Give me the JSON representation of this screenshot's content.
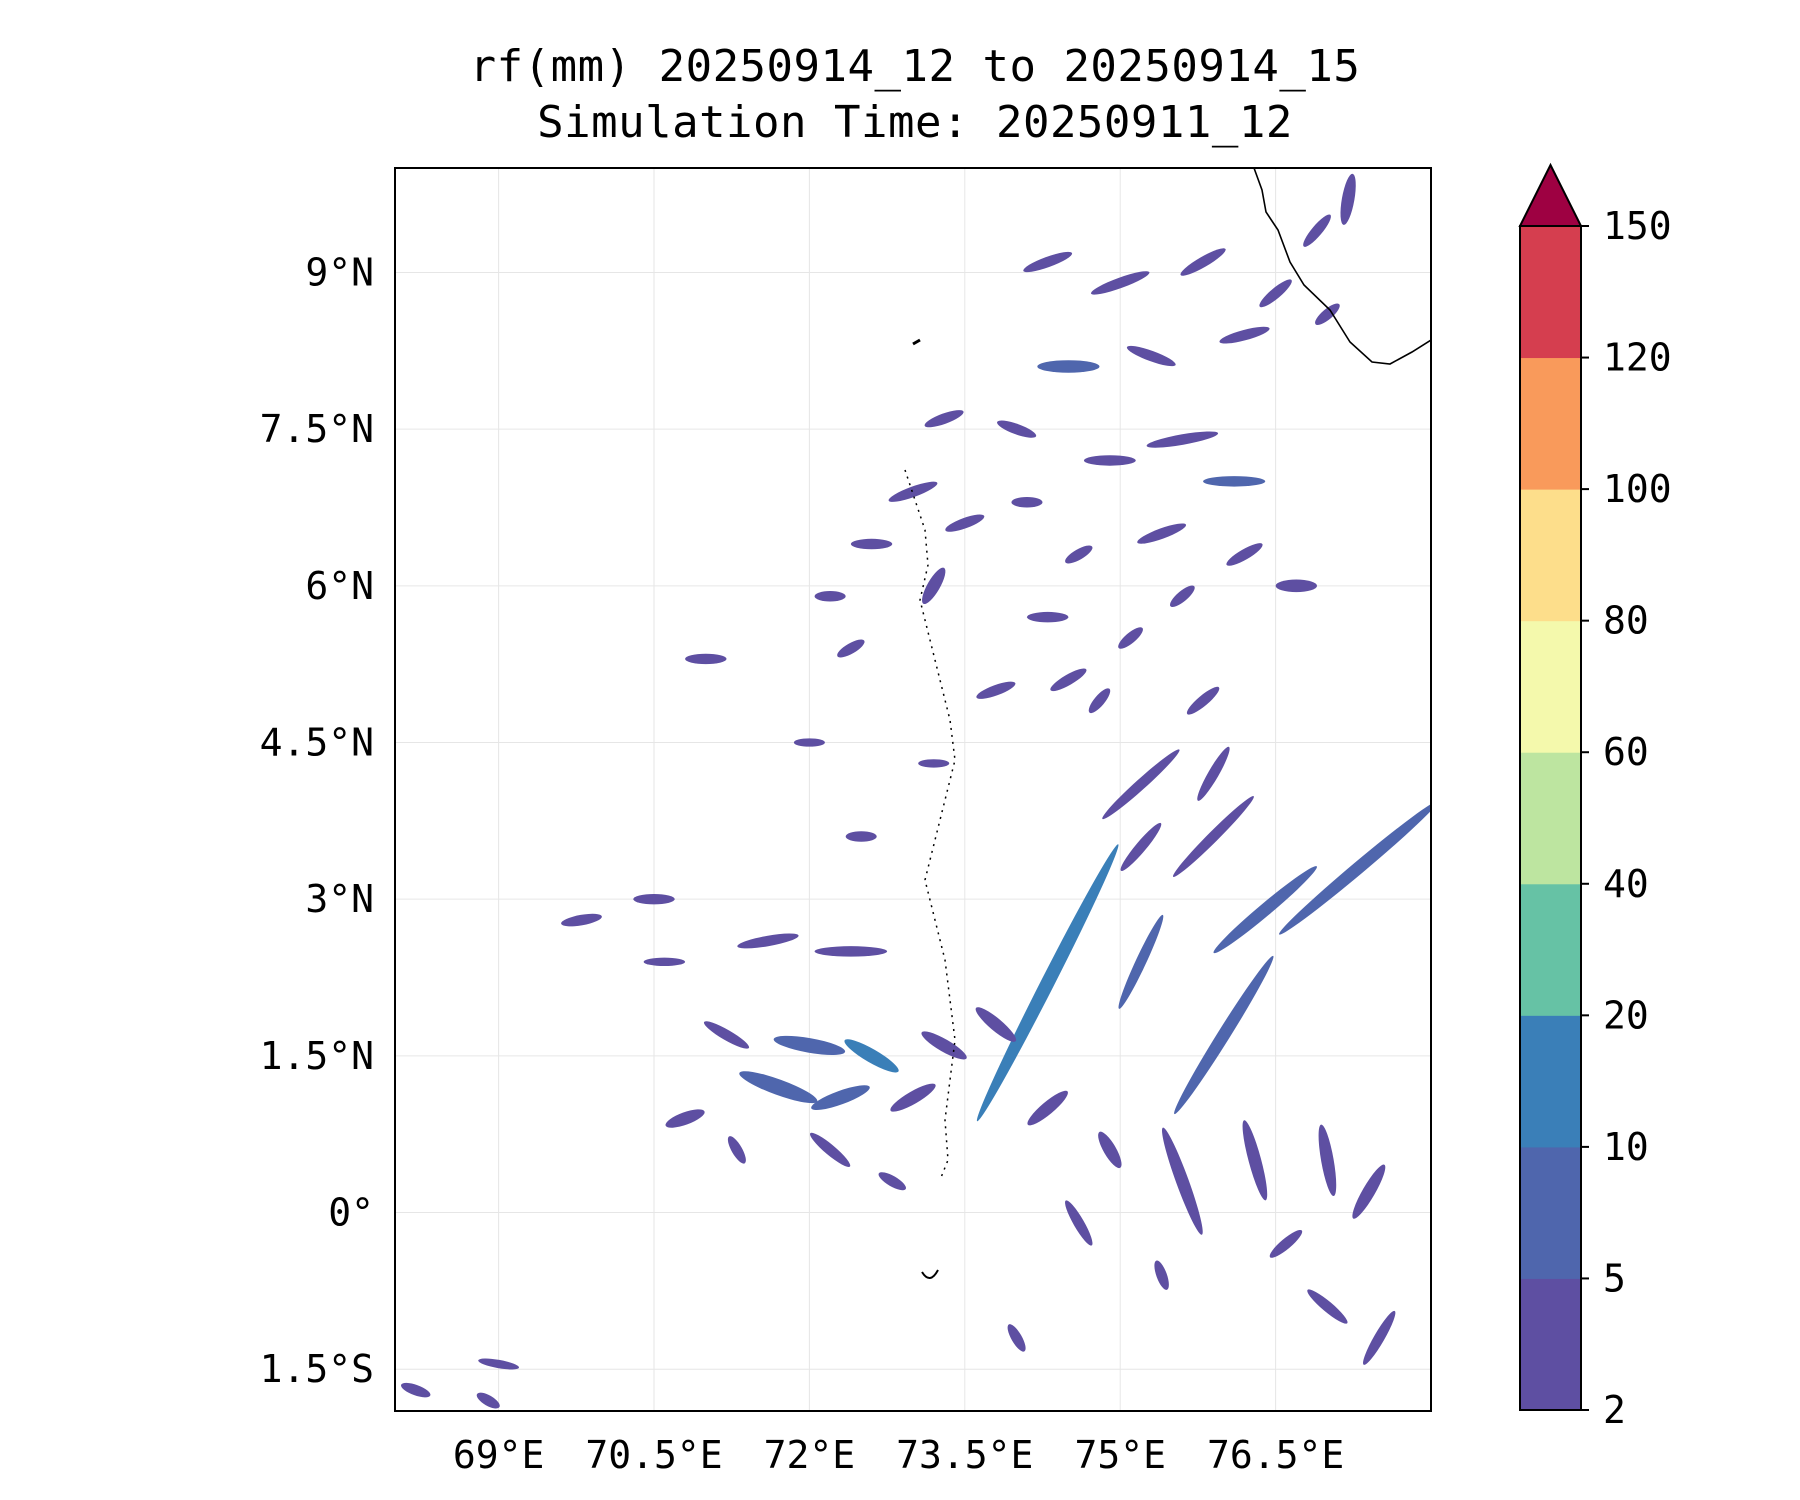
{
  "figure": {
    "title_line1": "rf(mm) 20250914_12 to 20250914_15",
    "title_line2": "Simulation Time: 20250911_12"
  },
  "map": {
    "lon_range": [
      68,
      78
    ],
    "lat_range": [
      -1.9,
      10
    ],
    "gridlines": true,
    "x_ticks": [
      {
        "value": 69,
        "label": "69°E"
      },
      {
        "value": 70.5,
        "label": "70.5°E"
      },
      {
        "value": 72,
        "label": "72°E"
      },
      {
        "value": 73.5,
        "label": "73.5°E"
      },
      {
        "value": 75,
        "label": "75°E"
      },
      {
        "value": 76.5,
        "label": "76.5°E"
      }
    ],
    "y_ticks": [
      {
        "value": 9,
        "label": "9°N"
      },
      {
        "value": 7.5,
        "label": "7.5°N"
      },
      {
        "value": 6,
        "label": "6°N"
      },
      {
        "value": 4.5,
        "label": "4.5°N"
      },
      {
        "value": 3,
        "label": "3°N"
      },
      {
        "value": 1.5,
        "label": "1.5°N"
      },
      {
        "value": 0,
        "label": "0°"
      },
      {
        "value": -1.5,
        "label": "1.5°S"
      }
    ]
  },
  "colorbar": {
    "levels": [
      2,
      5,
      10,
      20,
      40,
      60,
      80,
      100,
      120,
      150
    ],
    "labels": [
      "2",
      "5",
      "10",
      "20",
      "40",
      "60",
      "80",
      "100",
      "120",
      "150"
    ],
    "colors": [
      "#5e4fa2",
      "#4f66ad",
      "#3a7fb8",
      "#66c2a5",
      "#bde5a0",
      "#f4f9ac",
      "#fdde8b",
      "#f99a5b",
      "#d53e4f"
    ],
    "extend_color": "#9e0142",
    "extend": "max"
  },
  "rain_cells": [
    {
      "lon": 76.1,
      "lat": 7.0,
      "len": 0.6,
      "wid": 0.1,
      "ang": 0,
      "level": 1
    },
    {
      "lon": 75.6,
      "lat": 7.4,
      "len": 0.7,
      "wid": 0.1,
      "ang": -10,
      "level": 0
    },
    {
      "lon": 74.9,
      "lat": 7.2,
      "len": 0.5,
      "wid": 0.1,
      "ang": 0,
      "level": 0
    },
    {
      "lon": 74.0,
      "lat": 7.5,
      "len": 0.4,
      "wid": 0.1,
      "ang": 20,
      "level": 0
    },
    {
      "lon": 74.5,
      "lat": 8.1,
      "len": 0.6,
      "wid": 0.12,
      "ang": 0,
      "level": 1
    },
    {
      "lon": 75.3,
      "lat": 8.2,
      "len": 0.5,
      "wid": 0.1,
      "ang": 20,
      "level": 0
    },
    {
      "lon": 76.2,
      "lat": 8.4,
      "len": 0.5,
      "wid": 0.1,
      "ang": -15,
      "level": 0
    },
    {
      "lon": 75.0,
      "lat": 8.9,
      "len": 0.6,
      "wid": 0.1,
      "ang": -20,
      "level": 0
    },
    {
      "lon": 75.8,
      "lat": 9.1,
      "len": 0.5,
      "wid": 0.1,
      "ang": -30,
      "level": 0
    },
    {
      "lon": 74.3,
      "lat": 9.1,
      "len": 0.5,
      "wid": 0.1,
      "ang": -20,
      "level": 0
    },
    {
      "lon": 76.9,
      "lat": 9.4,
      "len": 0.4,
      "wid": 0.1,
      "ang": -50,
      "level": 0
    },
    {
      "lon": 76.5,
      "lat": 8.8,
      "len": 0.4,
      "wid": 0.1,
      "ang": -40,
      "level": 0
    },
    {
      "lon": 77.0,
      "lat": 8.6,
      "len": 0.3,
      "wid": 0.1,
      "ang": -40,
      "level": 0
    },
    {
      "lon": 77.2,
      "lat": 9.7,
      "len": 0.5,
      "wid": 0.12,
      "ang": -80,
      "level": 0
    },
    {
      "lon": 73.3,
      "lat": 7.6,
      "len": 0.4,
      "wid": 0.1,
      "ang": -20,
      "level": 0
    },
    {
      "lon": 73.0,
      "lat": 6.9,
      "len": 0.5,
      "wid": 0.1,
      "ang": -20,
      "level": 0
    },
    {
      "lon": 72.6,
      "lat": 6.4,
      "len": 0.4,
      "wid": 0.1,
      "ang": 0,
      "level": 0
    },
    {
      "lon": 73.2,
      "lat": 6.0,
      "len": 0.4,
      "wid": 0.12,
      "ang": -60,
      "level": 0
    },
    {
      "lon": 73.5,
      "lat": 6.6,
      "len": 0.4,
      "wid": 0.1,
      "ang": -20,
      "level": 0
    },
    {
      "lon": 74.1,
      "lat": 6.8,
      "len": 0.3,
      "wid": 0.1,
      "ang": 0,
      "level": 0
    },
    {
      "lon": 74.6,
      "lat": 6.3,
      "len": 0.3,
      "wid": 0.1,
      "ang": -30,
      "level": 0
    },
    {
      "lon": 75.4,
      "lat": 6.5,
      "len": 0.5,
      "wid": 0.1,
      "ang": -20,
      "level": 0
    },
    {
      "lon": 76.2,
      "lat": 6.3,
      "len": 0.4,
      "wid": 0.1,
      "ang": -30,
      "level": 0
    },
    {
      "lon": 76.7,
      "lat": 6.0,
      "len": 0.4,
      "wid": 0.12,
      "ang": 0,
      "level": 0
    },
    {
      "lon": 75.6,
      "lat": 5.9,
      "len": 0.3,
      "wid": 0.1,
      "ang": -40,
      "level": 0
    },
    {
      "lon": 74.3,
      "lat": 5.7,
      "len": 0.4,
      "wid": 0.1,
      "ang": 0,
      "level": 0
    },
    {
      "lon": 75.1,
      "lat": 5.5,
      "len": 0.3,
      "wid": 0.1,
      "ang": -40,
      "level": 0
    },
    {
      "lon": 72.2,
      "lat": 5.9,
      "len": 0.3,
      "wid": 0.1,
      "ang": 0,
      "level": 0
    },
    {
      "lon": 71.0,
      "lat": 5.3,
      "len": 0.4,
      "wid": 0.1,
      "ang": 0,
      "level": 0
    },
    {
      "lon": 72.4,
      "lat": 5.4,
      "len": 0.3,
      "wid": 0.1,
      "ang": -30,
      "level": 0
    },
    {
      "lon": 73.8,
      "lat": 5.0,
      "len": 0.4,
      "wid": 0.1,
      "ang": -20,
      "level": 0
    },
    {
      "lon": 74.5,
      "lat": 5.1,
      "len": 0.4,
      "wid": 0.1,
      "ang": -30,
      "level": 0
    },
    {
      "lon": 75.8,
      "lat": 4.9,
      "len": 0.4,
      "wid": 0.1,
      "ang": -40,
      "level": 0
    },
    {
      "lon": 74.8,
      "lat": 4.9,
      "len": 0.3,
      "wid": 0.1,
      "ang": -50,
      "level": 0
    },
    {
      "lon": 72.0,
      "lat": 4.5,
      "len": 0.3,
      "wid": 0.08,
      "ang": 0,
      "level": 0
    },
    {
      "lon": 73.2,
      "lat": 4.3,
      "len": 0.3,
      "wid": 0.08,
      "ang": 0,
      "level": 0
    },
    {
      "lon": 75.2,
      "lat": 4.1,
      "len": 1.0,
      "wid": 0.1,
      "ang": -42,
      "level": 0
    },
    {
      "lon": 75.9,
      "lat": 3.6,
      "len": 1.1,
      "wid": 0.1,
      "ang": -45,
      "level": 0
    },
    {
      "lon": 75.2,
      "lat": 3.5,
      "len": 0.6,
      "wid": 0.1,
      "ang": -50,
      "level": 0
    },
    {
      "lon": 75.9,
      "lat": 4.2,
      "len": 0.6,
      "wid": 0.1,
      "ang": -60,
      "level": 0
    },
    {
      "lon": 76.4,
      "lat": 2.9,
      "len": 1.3,
      "wid": 0.12,
      "ang": -40,
      "level": 1
    },
    {
      "lon": 77.3,
      "lat": 3.3,
      "len": 2.0,
      "wid": 0.12,
      "ang": -40,
      "level": 1
    },
    {
      "lon": 74.3,
      "lat": 2.2,
      "len": 3.0,
      "wid": 0.13,
      "ang": -63,
      "level": 2
    },
    {
      "lon": 76.0,
      "lat": 1.7,
      "len": 1.8,
      "wid": 0.12,
      "ang": -58,
      "level": 1
    },
    {
      "lon": 75.2,
      "lat": 2.4,
      "len": 1.0,
      "wid": 0.1,
      "ang": -65,
      "level": 1
    },
    {
      "lon": 72.5,
      "lat": 3.6,
      "len": 0.3,
      "wid": 0.1,
      "ang": 0,
      "level": 0
    },
    {
      "lon": 70.5,
      "lat": 3.0,
      "len": 0.4,
      "wid": 0.1,
      "ang": 0,
      "level": 0
    },
    {
      "lon": 69.8,
      "lat": 2.8,
      "len": 0.4,
      "wid": 0.1,
      "ang": -10,
      "level": 0
    },
    {
      "lon": 71.6,
      "lat": 2.6,
      "len": 0.6,
      "wid": 0.1,
      "ang": -10,
      "level": 0
    },
    {
      "lon": 72.4,
      "lat": 2.5,
      "len": 0.7,
      "wid": 0.1,
      "ang": 0,
      "level": 0
    },
    {
      "lon": 70.6,
      "lat": 2.4,
      "len": 0.4,
      "wid": 0.08,
      "ang": 0,
      "level": 0
    },
    {
      "lon": 71.2,
      "lat": 1.7,
      "len": 0.5,
      "wid": 0.1,
      "ang": 30,
      "level": 0
    },
    {
      "lon": 72.0,
      "lat": 1.6,
      "len": 0.7,
      "wid": 0.14,
      "ang": 10,
      "level": 1
    },
    {
      "lon": 72.6,
      "lat": 1.5,
      "len": 0.6,
      "wid": 0.13,
      "ang": 30,
      "level": 2
    },
    {
      "lon": 71.7,
      "lat": 1.2,
      "len": 0.8,
      "wid": 0.15,
      "ang": 20,
      "level": 1
    },
    {
      "lon": 72.3,
      "lat": 1.1,
      "len": 0.6,
      "wid": 0.13,
      "ang": -20,
      "level": 1
    },
    {
      "lon": 73.0,
      "lat": 1.1,
      "len": 0.5,
      "wid": 0.12,
      "ang": -30,
      "level": 0
    },
    {
      "lon": 73.3,
      "lat": 1.6,
      "len": 0.5,
      "wid": 0.12,
      "ang": 30,
      "level": 0
    },
    {
      "lon": 73.8,
      "lat": 1.8,
      "len": 0.5,
      "wid": 0.12,
      "ang": 40,
      "level": 0
    },
    {
      "lon": 70.8,
      "lat": 0.9,
      "len": 0.4,
      "wid": 0.12,
      "ang": -20,
      "level": 0
    },
    {
      "lon": 71.3,
      "lat": 0.6,
      "len": 0.3,
      "wid": 0.1,
      "ang": 60,
      "level": 0
    },
    {
      "lon": 72.2,
      "lat": 0.6,
      "len": 0.5,
      "wid": 0.1,
      "ang": 40,
      "level": 0
    },
    {
      "lon": 72.8,
      "lat": 0.3,
      "len": 0.3,
      "wid": 0.1,
      "ang": 30,
      "level": 0
    },
    {
      "lon": 74.3,
      "lat": 1.0,
      "len": 0.5,
      "wid": 0.12,
      "ang": -40,
      "level": 0
    },
    {
      "lon": 74.9,
      "lat": 0.6,
      "len": 0.4,
      "wid": 0.12,
      "ang": 60,
      "level": 0
    },
    {
      "lon": 75.6,
      "lat": 0.3,
      "len": 1.1,
      "wid": 0.12,
      "ang": 70,
      "level": 0
    },
    {
      "lon": 76.3,
      "lat": 0.5,
      "len": 0.8,
      "wid": 0.12,
      "ang": 75,
      "level": 0
    },
    {
      "lon": 77.0,
      "lat": 0.5,
      "len": 0.7,
      "wid": 0.12,
      "ang": 80,
      "level": 0
    },
    {
      "lon": 77.4,
      "lat": 0.2,
      "len": 0.6,
      "wid": 0.12,
      "ang": -60,
      "level": 0
    },
    {
      "lon": 74.6,
      "lat": -0.1,
      "len": 0.5,
      "wid": 0.1,
      "ang": 60,
      "level": 0
    },
    {
      "lon": 76.6,
      "lat": -0.3,
      "len": 0.4,
      "wid": 0.1,
      "ang": -40,
      "level": 0
    },
    {
      "lon": 75.4,
      "lat": -0.6,
      "len": 0.3,
      "wid": 0.1,
      "ang": 70,
      "level": 0
    },
    {
      "lon": 77.5,
      "lat": -1.2,
      "len": 0.6,
      "wid": 0.1,
      "ang": -60,
      "level": 0
    },
    {
      "lon": 77.0,
      "lat": -0.9,
      "len": 0.5,
      "wid": 0.1,
      "ang": 40,
      "level": 0
    },
    {
      "lon": 74.0,
      "lat": -1.2,
      "len": 0.3,
      "wid": 0.1,
      "ang": 60,
      "level": 0
    },
    {
      "lon": 68.2,
      "lat": -1.7,
      "len": 0.3,
      "wid": 0.1,
      "ang": 20,
      "level": 0
    },
    {
      "lon": 69.0,
      "lat": -1.45,
      "len": 0.4,
      "wid": 0.08,
      "ang": 10,
      "level": 0
    },
    {
      "lon": 68.9,
      "lat": -1.8,
      "len": 0.25,
      "wid": 0.1,
      "ang": 30,
      "level": 0
    }
  ]
}
